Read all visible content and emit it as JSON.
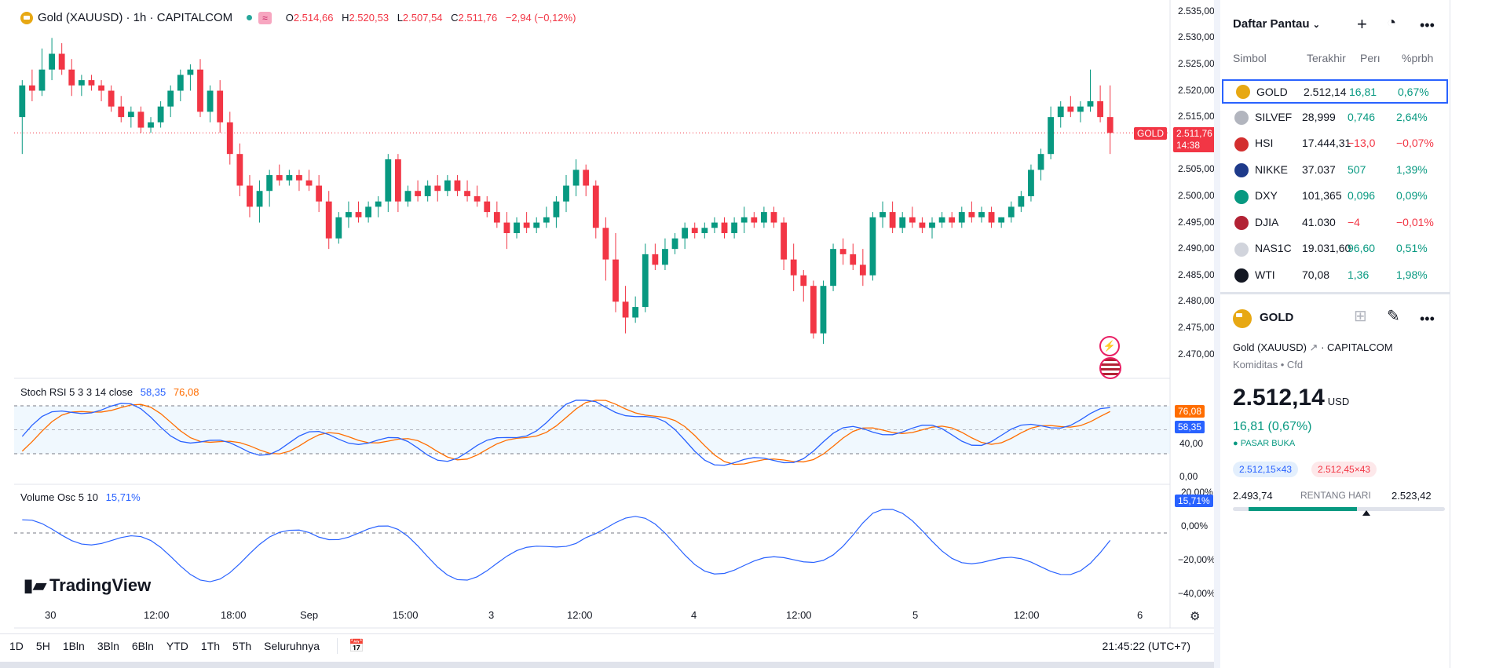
{
  "legend": {
    "title": "Gold (XAUUSD) · 1h · CAPITALCOM",
    "o_label": "O",
    "o": "2.514,66",
    "h_label": "H",
    "h": "2.520,53",
    "l_label": "L",
    "l": "2.507,54",
    "c_label": "C",
    "c": "2.511,76",
    "change": "−2,94 (−0,12%)",
    "badge": "≈"
  },
  "price_axis": [
    "2.535,00",
    "2.530,00",
    "2.525,00",
    "2.520,00",
    "2.515,00",
    "2.510,00",
    "2.505,00",
    "2.500,00",
    "2.495,00",
    "2.490,00",
    "2.485,00",
    "2.480,00",
    "2.475,00",
    "2.470,00"
  ],
  "last_price_tag": {
    "symbol": "GOLD",
    "price": "2.511,76",
    "countdown": "14:38"
  },
  "stoch": {
    "label": "Stoch RSI 5 3 3 14 close",
    "k": "58,35",
    "d": "76,08",
    "axis": [
      "40,00",
      "0,00"
    ],
    "k_color": "#2962ff",
    "d_color": "#ff6d00"
  },
  "vol_osc": {
    "label": "Volume Osc 5 10",
    "value": "15,71%",
    "axis": [
      "20,00%",
      "0,00%",
      "−20,00%",
      "−40,00%"
    ]
  },
  "time_axis": [
    "30",
    "12:00",
    "18:00",
    "Sep",
    "15:00",
    "3",
    "12:00",
    "4",
    "12:00",
    "5",
    "12:00",
    "6"
  ],
  "watermark": "TradingView",
  "bottom": {
    "ranges": [
      "1D",
      "5H",
      "1Bln",
      "3Bln",
      "6Bln",
      "YTD",
      "1Th",
      "5Th",
      "Seluruhnya"
    ],
    "clock": "21:45:22 (UTC+7)"
  },
  "watchlist": {
    "title": "Daftar Pantau",
    "columns": [
      "Simbol",
      "Terakhir",
      "Perı",
      "%prbh"
    ],
    "rows": [
      {
        "sym": "GOLD",
        "last": "2.512,14",
        "chg": "16,81",
        "pct": "0,67%",
        "dir": "pos",
        "icon": "#e7a813",
        "selected": true
      },
      {
        "sym": "SILVEF",
        "last": "28,999",
        "chg": "0,746",
        "pct": "2,64%",
        "dir": "pos",
        "icon": "#b2b5be",
        "selected": false
      },
      {
        "sym": "HSI",
        "last": "17.444,31",
        "chg": "−13,0",
        "pct": "−0,07%",
        "dir": "neg",
        "icon": "#d32f2f",
        "selected": false
      },
      {
        "sym": "NIKKE",
        "last": "37.037",
        "chg": "507",
        "pct": "1,39%",
        "dir": "pos",
        "icon": "#1e3a8a",
        "selected": false
      },
      {
        "sym": "DXY",
        "last": "101,365",
        "chg": "0,096",
        "pct": "0,09%",
        "dir": "pos",
        "icon": "#089981",
        "selected": false
      },
      {
        "sym": "DJIA",
        "last": "41.030",
        "chg": "−4",
        "pct": "−0,01%",
        "dir": "neg",
        "icon": "#b22234",
        "selected": false
      },
      {
        "sym": "NAS1C",
        "last": "19.031,60",
        "chg": "96,60",
        "pct": "0,51%",
        "dir": "pos",
        "icon": "#d1d4dc",
        "selected": false
      },
      {
        "sym": "WTI",
        "last": "70,08",
        "chg": "1,36",
        "pct": "1,98%",
        "dir": "pos",
        "icon": "#131722",
        "selected": false
      }
    ]
  },
  "detail": {
    "symbol": "GOLD",
    "name": "Gold (XAUUSD)",
    "exchange": "CAPITALCOM",
    "category": "Komiditas",
    "type": "Cfd",
    "price": "2.512,14",
    "currency": "USD",
    "change": "16,81 (0,67%)",
    "status": "PASAR BUKA",
    "bid": "2.512,15×43",
    "ask": "2.512,45×43",
    "day_low": "2.493,74",
    "day_label": "RENTANG HARI",
    "day_high": "2.523,42",
    "day_position": 0.63
  },
  "chart_data": {
    "type": "candlestick",
    "symbol": "XAUUSD",
    "interval": "1h",
    "ylim": [
      2468,
      2536
    ],
    "bull_color": "#089981",
    "bear_color": "#f23645",
    "candles": [
      [
        2515,
        2522,
        2508,
        2521
      ],
      [
        2521,
        2524,
        2518,
        2520
      ],
      [
        2520,
        2528,
        2519,
        2524
      ],
      [
        2524,
        2530,
        2522,
        2527
      ],
      [
        2527,
        2529,
        2523,
        2524
      ],
      [
        2524,
        2526,
        2519,
        2521
      ],
      [
        2521,
        2523,
        2519,
        2522
      ],
      [
        2522,
        2523,
        2520,
        2521
      ],
      [
        2521,
        2522,
        2518,
        2520
      ],
      [
        2520,
        2521,
        2516,
        2517
      ],
      [
        2517,
        2519,
        2514,
        2515
      ],
      [
        2515,
        2517,
        2513,
        2516
      ],
      [
        2516,
        2517,
        2512,
        2513
      ],
      [
        2513,
        2515,
        2512,
        2514
      ],
      [
        2514,
        2518,
        2513,
        2517
      ],
      [
        2517,
        2521,
        2515,
        2520
      ],
      [
        2520,
        2524,
        2518,
        2523
      ],
      [
        2523,
        2525,
        2520,
        2524
      ],
      [
        2524,
        2526,
        2515,
        2516
      ],
      [
        2516,
        2521,
        2514,
        2520
      ],
      [
        2520,
        2522,
        2512,
        2514
      ],
      [
        2514,
        2516,
        2506,
        2508
      ],
      [
        2508,
        2510,
        2500,
        2502
      ],
      [
        2502,
        2504,
        2496,
        2498
      ],
      [
        2498,
        2503,
        2495,
        2501
      ],
      [
        2501,
        2505,
        2498,
        2504
      ],
      [
        2504,
        2506,
        2502,
        2503
      ],
      [
        2503,
        2505,
        2502,
        2504
      ],
      [
        2504,
        2505,
        2501,
        2503
      ],
      [
        2503,
        2505,
        2501,
        2502
      ],
      [
        2502,
        2504,
        2497,
        2499
      ],
      [
        2499,
        2501,
        2490,
        2492
      ],
      [
        2492,
        2497,
        2491,
        2496
      ],
      [
        2496,
        2499,
        2494,
        2497
      ],
      [
        2497,
        2499,
        2495,
        2496
      ],
      [
        2496,
        2499,
        2495,
        2498
      ],
      [
        2498,
        2500,
        2496,
        2499
      ],
      [
        2499,
        2508,
        2497,
        2507
      ],
      [
        2507,
        2508,
        2497,
        2499
      ],
      [
        2499,
        2502,
        2498,
        2501
      ],
      [
        2501,
        2503,
        2499,
        2500
      ],
      [
        2500,
        2503,
        2499,
        2502
      ],
      [
        2502,
        2504,
        2499,
        2501
      ],
      [
        2501,
        2504,
        2500,
        2503
      ],
      [
        2503,
        2504,
        2500,
        2501
      ],
      [
        2501,
        2503,
        2499,
        2500
      ],
      [
        2500,
        2502,
        2498,
        2499
      ],
      [
        2499,
        2500,
        2496,
        2497
      ],
      [
        2497,
        2499,
        2494,
        2495
      ],
      [
        2495,
        2497,
        2490,
        2493
      ],
      [
        2493,
        2496,
        2492,
        2495
      ],
      [
        2495,
        2497,
        2493,
        2494
      ],
      [
        2494,
        2496,
        2493,
        2495
      ],
      [
        2495,
        2498,
        2494,
        2496
      ],
      [
        2496,
        2500,
        2494,
        2499
      ],
      [
        2499,
        2504,
        2497,
        2502
      ],
      [
        2502,
        2507,
        2500,
        2505
      ],
      [
        2505,
        2506,
        2500,
        2502
      ],
      [
        2502,
        2503,
        2492,
        2494
      ],
      [
        2494,
        2496,
        2484,
        2488
      ],
      [
        2488,
        2493,
        2478,
        2480
      ],
      [
        2480,
        2483,
        2474,
        2477
      ],
      [
        2477,
        2481,
        2476,
        2479
      ],
      [
        2479,
        2491,
        2478,
        2489
      ],
      [
        2489,
        2491,
        2486,
        2487
      ],
      [
        2487,
        2492,
        2486,
        2490
      ],
      [
        2490,
        2493,
        2489,
        2492
      ],
      [
        2492,
        2495,
        2490,
        2494
      ],
      [
        2494,
        2495,
        2492,
        2493
      ],
      [
        2493,
        2495,
        2492,
        2494
      ],
      [
        2494,
        2496,
        2493,
        2495
      ],
      [
        2495,
        2496,
        2492,
        2493
      ],
      [
        2493,
        2496,
        2492,
        2495
      ],
      [
        2495,
        2498,
        2493,
        2496
      ],
      [
        2496,
        2497,
        2494,
        2495
      ],
      [
        2495,
        2498,
        2494,
        2497
      ],
      [
        2497,
        2498,
        2494,
        2495
      ],
      [
        2495,
        2496,
        2486,
        2488
      ],
      [
        2488,
        2491,
        2482,
        2485
      ],
      [
        2485,
        2486,
        2480,
        2483
      ],
      [
        2483,
        2484,
        2473,
        2474
      ],
      [
        2474,
        2484,
        2472,
        2483
      ],
      [
        2483,
        2491,
        2482,
        2490
      ],
      [
        2490,
        2492,
        2487,
        2489
      ],
      [
        2489,
        2491,
        2486,
        2487
      ],
      [
        2487,
        2490,
        2483,
        2485
      ],
      [
        2485,
        2497,
        2484,
        2496
      ],
      [
        2496,
        2499,
        2494,
        2497
      ],
      [
        2497,
        2499,
        2493,
        2494
      ],
      [
        2494,
        2497,
        2493,
        2496
      ],
      [
        2496,
        2498,
        2494,
        2495
      ],
      [
        2495,
        2496,
        2493,
        2494
      ],
      [
        2494,
        2496,
        2492,
        2495
      ],
      [
        2495,
        2497,
        2494,
        2496
      ],
      [
        2496,
        2497,
        2494,
        2495
      ],
      [
        2495,
        2498,
        2494,
        2497
      ],
      [
        2497,
        2499,
        2495,
        2496
      ],
      [
        2496,
        2498,
        2495,
        2497
      ],
      [
        2497,
        2498,
        2494,
        2495
      ],
      [
        2495,
        2496,
        2494,
        2496
      ],
      [
        2496,
        2499,
        2495,
        2498
      ],
      [
        2498,
        2501,
        2497,
        2500
      ],
      [
        2500,
        2506,
        2499,
        2505
      ],
      [
        2505,
        2509,
        2503,
        2508
      ],
      [
        2508,
        2517,
        2507,
        2515
      ],
      [
        2515,
        2518,
        2513,
        2517
      ],
      [
        2517,
        2519,
        2515,
        2516
      ],
      [
        2516,
        2518,
        2514,
        2517
      ],
      [
        2517,
        2524,
        2516,
        2518
      ],
      [
        2518,
        2521,
        2514,
        2515
      ],
      [
        2515,
        2521,
        2508,
        2512
      ]
    ]
  }
}
